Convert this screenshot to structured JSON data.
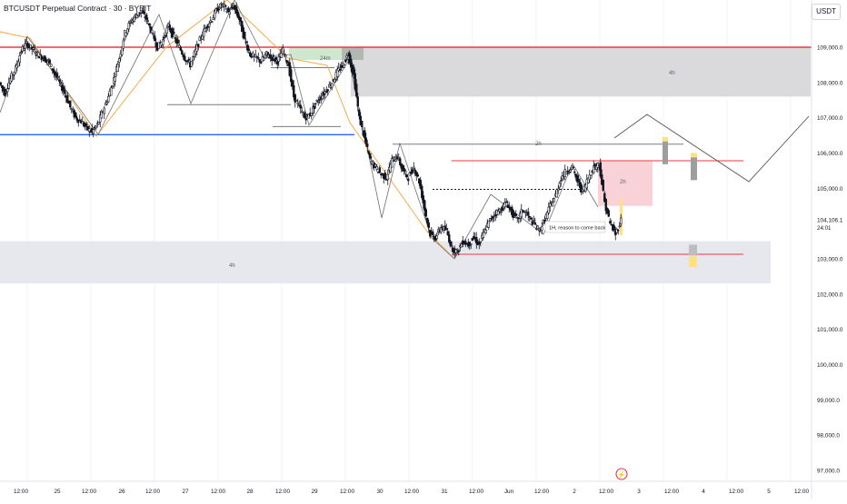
{
  "header": {
    "symbol_title": "BTCUSDT Perpetual Contract · 30 · BYBIT",
    "currency": "USDT"
  },
  "price_axis": {
    "ticks": [
      "109,000.0",
      "108,000.0",
      "107,000.0",
      "106,000.0",
      "105,000.0",
      "104,106.1",
      "103,000.0",
      "102,000.0",
      "101,000.0",
      "100,000.0",
      "99,000.0",
      "98,000.0",
      "97,000.0"
    ],
    "current_price": "104,106.1",
    "countdown": "24:01"
  },
  "time_axis": {
    "ticks": [
      "12:00",
      "25",
      "12:00",
      "26",
      "12:00",
      "27",
      "12:00",
      "28",
      "12:00",
      "29",
      "12:00",
      "30",
      "12:00",
      "31",
      "12:00",
      "Jun",
      "12:00",
      "2",
      "12:00",
      "3",
      "12:00",
      "4",
      "12:00",
      "5",
      "12:00"
    ]
  },
  "annotations": {
    "label_24m": "24m",
    "label_4h_top": "4h",
    "label_4h_bottom": "4h",
    "label_2h": "2h",
    "label_2h_box": "2h",
    "label_reason": "1H, reason to come back"
  },
  "colors": {
    "bull": "#131722",
    "bear": "#131722",
    "red_level": "#f23645",
    "blue_level": "#2962ff",
    "zone_gray": "#d5d5d8",
    "zone_red": "#f7c7ce",
    "zone_green": "#c8e6c9",
    "orange": "#f5a33a"
  },
  "chart_data": {
    "type": "candlestick",
    "title": "BTCUSDT Perpetual Contract · 30 · BYBIT",
    "ylabel": "USDT",
    "ylim": [
      96800,
      110300
    ],
    "price_levels": {
      "red_resistance": 109000,
      "blue_support": 106520,
      "pink_upper": 105780,
      "pink_lower": 103130
    },
    "zones": [
      {
        "name": "4h",
        "from": 107600,
        "to": 109000
      },
      {
        "name": "4h",
        "from": 102300,
        "to": 103500
      },
      {
        "name": "2h",
        "from": 104500,
        "to": 105780
      },
      {
        "name": "24m",
        "from": 108650,
        "to": 109000
      }
    ],
    "close_path": [
      [
        0,
        108000
      ],
      [
        6,
        107700
      ],
      [
        12,
        108100
      ],
      [
        18,
        108400
      ],
      [
        24,
        108900
      ],
      [
        30,
        109100
      ],
      [
        36,
        108950
      ],
      [
        42,
        108800
      ],
      [
        48,
        108700
      ],
      [
        54,
        108600
      ],
      [
        60,
        108300
      ],
      [
        66,
        108000
      ],
      [
        72,
        107700
      ],
      [
        78,
        107300
      ],
      [
        84,
        107000
      ],
      [
        90,
        106900
      ],
      [
        96,
        106700
      ],
      [
        102,
        106600
      ],
      [
        108,
        106800
      ],
      [
        114,
        107200
      ],
      [
        120,
        107600
      ],
      [
        126,
        108100
      ],
      [
        132,
        108700
      ],
      [
        138,
        109400
      ],
      [
        144,
        109700
      ],
      [
        150,
        109900
      ],
      [
        156,
        110000
      ],
      [
        162,
        109800
      ],
      [
        168,
        109400
      ],
      [
        174,
        109000
      ],
      [
        180,
        109200
      ],
      [
        186,
        109600
      ],
      [
        192,
        109300
      ],
      [
        198,
        109000
      ],
      [
        204,
        108700
      ],
      [
        210,
        108500
      ],
      [
        216,
        108900
      ],
      [
        222,
        109300
      ],
      [
        228,
        109600
      ],
      [
        234,
        109800
      ],
      [
        240,
        110100
      ],
      [
        246,
        110200
      ],
      [
        252,
        110000
      ],
      [
        258,
        110150
      ],
      [
        264,
        109800
      ],
      [
        270,
        109200
      ],
      [
        276,
        108800
      ],
      [
        282,
        108700
      ],
      [
        288,
        108600
      ],
      [
        294,
        108800
      ],
      [
        300,
        108700
      ],
      [
        306,
        108600
      ],
      [
        312,
        108900
      ],
      [
        318,
        108500
      ],
      [
        324,
        107600
      ],
      [
        330,
        107300
      ],
      [
        336,
        107000
      ],
      [
        342,
        107100
      ],
      [
        348,
        107400
      ],
      [
        354,
        107600
      ],
      [
        360,
        107800
      ],
      [
        366,
        108000
      ],
      [
        372,
        108300
      ],
      [
        378,
        108500
      ],
      [
        384,
        108800
      ],
      [
        390,
        108200
      ],
      [
        396,
        107000
      ],
      [
        402,
        106400
      ],
      [
        408,
        105800
      ],
      [
        414,
        105600
      ],
      [
        420,
        105400
      ],
      [
        426,
        105300
      ],
      [
        432,
        105800
      ],
      [
        438,
        105900
      ],
      [
        444,
        105500
      ],
      [
        450,
        105300
      ],
      [
        456,
        105600
      ],
      [
        462,
        105200
      ],
      [
        468,
        104400
      ],
      [
        474,
        103700
      ],
      [
        480,
        103600
      ],
      [
        486,
        103900
      ],
      [
        492,
        103800
      ],
      [
        498,
        103300
      ],
      [
        504,
        103200
      ],
      [
        510,
        103500
      ],
      [
        516,
        103400
      ],
      [
        522,
        103600
      ],
      [
        528,
        103400
      ],
      [
        534,
        103800
      ],
      [
        540,
        104100
      ],
      [
        546,
        104300
      ],
      [
        552,
        104400
      ],
      [
        558,
        104600
      ],
      [
        564,
        104300
      ],
      [
        570,
        104100
      ],
      [
        576,
        104400
      ],
      [
        582,
        104200
      ],
      [
        588,
        104000
      ],
      [
        594,
        103800
      ],
      [
        600,
        104100
      ],
      [
        606,
        104500
      ],
      [
        612,
        104800
      ],
      [
        618,
        105300
      ],
      [
        624,
        105500
      ],
      [
        630,
        105600
      ],
      [
        636,
        105200
      ],
      [
        642,
        104900
      ],
      [
        648,
        105300
      ],
      [
        654,
        105600
      ],
      [
        660,
        105700
      ],
      [
        666,
        104600
      ],
      [
        672,
        104000
      ],
      [
        678,
        103700
      ],
      [
        684,
        104100
      ]
    ],
    "current_price": 104106.1
  }
}
